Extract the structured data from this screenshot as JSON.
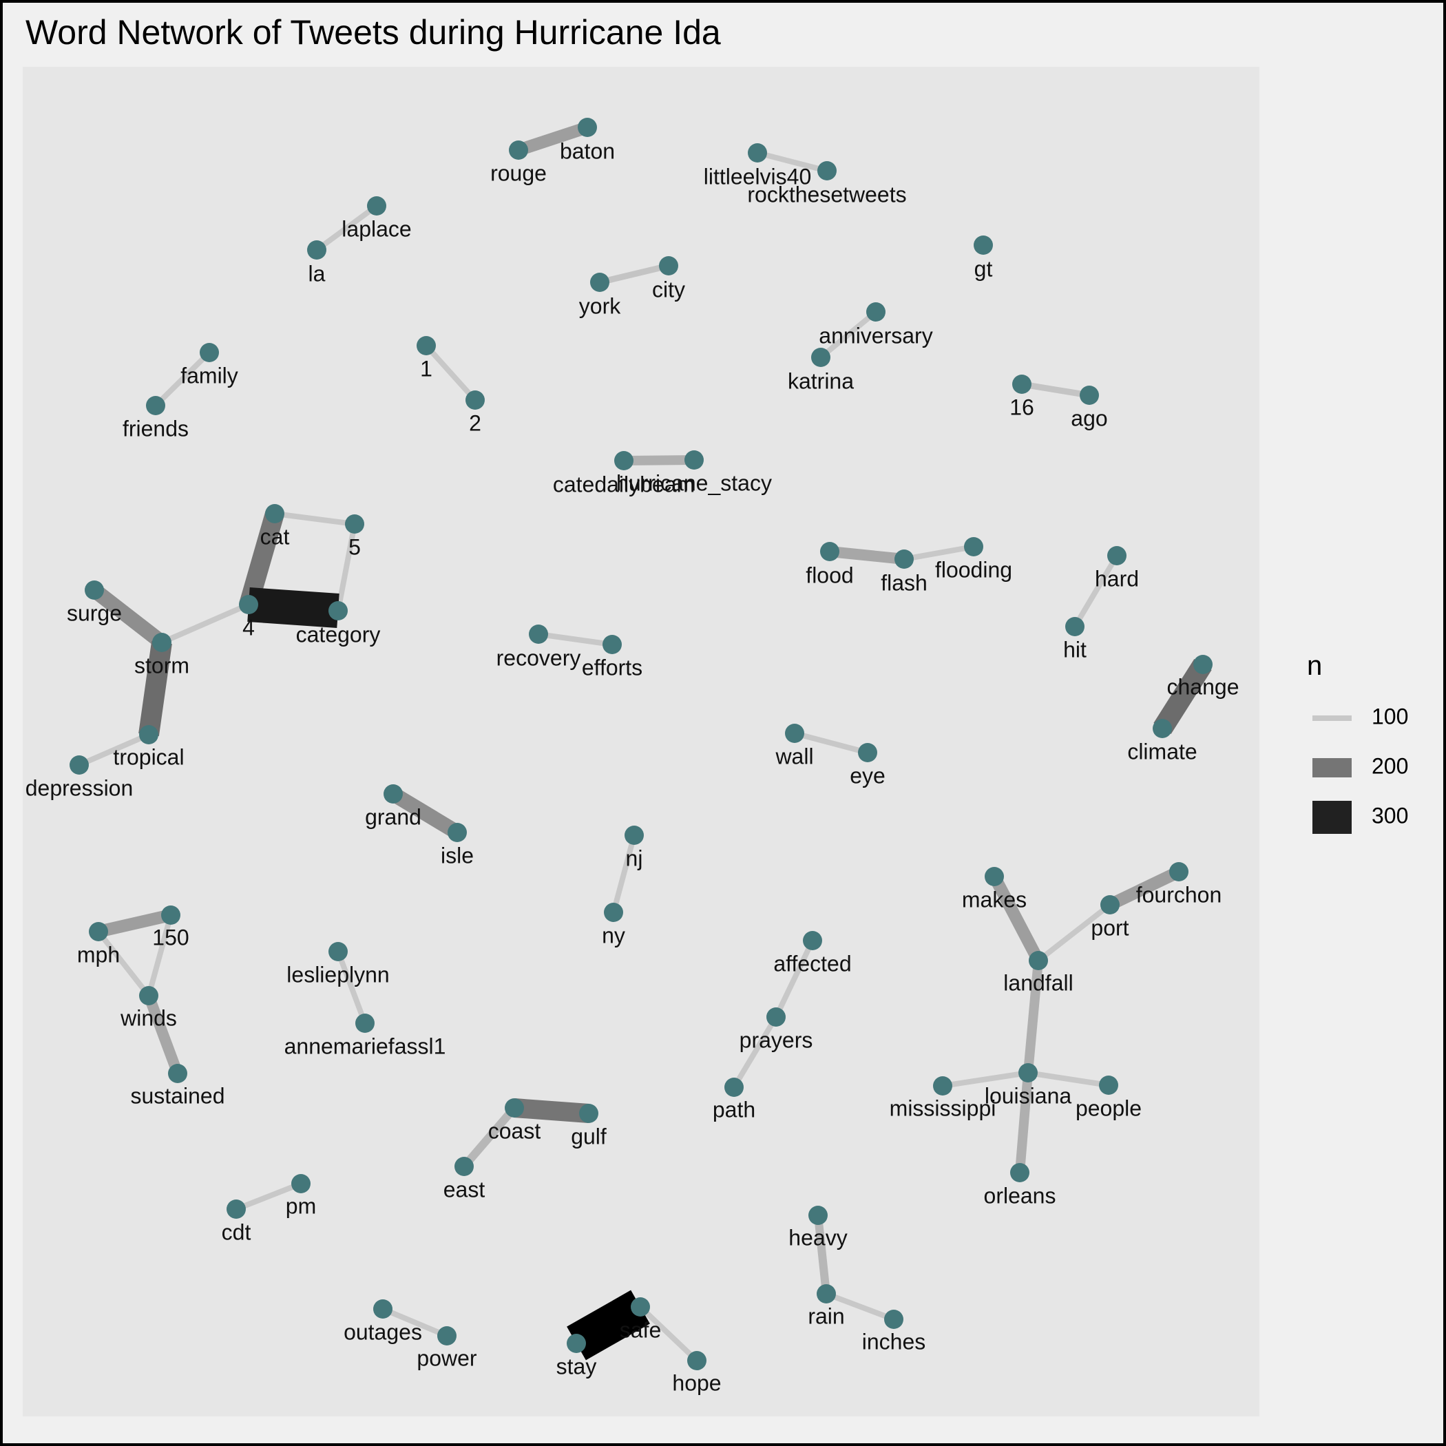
{
  "title": "Word Network of Tweets during Hurricane Ida",
  "colors": {
    "page_bg": "#f0f0f0",
    "panel_bg": "#e6e6e6",
    "node": "#44777a",
    "edge_low": "#c8c8c8",
    "edge_high": "#000000"
  },
  "legend": {
    "title": "n",
    "items": [
      {
        "label": "100",
        "n": 100
      },
      {
        "label": "200",
        "n": 200
      },
      {
        "label": "300",
        "n": 300
      }
    ]
  },
  "nodes": [
    {
      "id": "rouge",
      "label": "rouge"
    },
    {
      "id": "baton",
      "label": "baton"
    },
    {
      "id": "littleelvis40",
      "label": "littleelvis40"
    },
    {
      "id": "rockthesetweets",
      "label": "rockthesetweets"
    },
    {
      "id": "laplace",
      "label": "laplace"
    },
    {
      "id": "la",
      "label": "la"
    },
    {
      "id": "york",
      "label": "york"
    },
    {
      "id": "city",
      "label": "city"
    },
    {
      "id": "gt",
      "label": "gt"
    },
    {
      "id": "anniversary",
      "label": "anniversary"
    },
    {
      "id": "katrina",
      "label": "katrina"
    },
    {
      "id": "family",
      "label": "family"
    },
    {
      "id": "friends",
      "label": "friends"
    },
    {
      "id": "n1",
      "label": "1"
    },
    {
      "id": "n2",
      "label": "2"
    },
    {
      "id": "n16",
      "label": "16"
    },
    {
      "id": "ago",
      "label": "ago"
    },
    {
      "id": "catedailybeam",
      "label": "catedailybeam"
    },
    {
      "id": "hurricane_stacy",
      "label": "hurricane_stacy"
    },
    {
      "id": "cat",
      "label": "cat"
    },
    {
      "id": "n5",
      "label": "5"
    },
    {
      "id": "n4",
      "label": "4"
    },
    {
      "id": "category",
      "label": "category"
    },
    {
      "id": "flood",
      "label": "flood"
    },
    {
      "id": "flash",
      "label": "flash"
    },
    {
      "id": "flooding",
      "label": "flooding"
    },
    {
      "id": "hard",
      "label": "hard"
    },
    {
      "id": "hit",
      "label": "hit"
    },
    {
      "id": "surge",
      "label": "surge"
    },
    {
      "id": "storm",
      "label": "storm"
    },
    {
      "id": "tropical",
      "label": "tropical"
    },
    {
      "id": "depression",
      "label": "depression"
    },
    {
      "id": "recovery",
      "label": "recovery"
    },
    {
      "id": "efforts",
      "label": "efforts"
    },
    {
      "id": "change",
      "label": "change"
    },
    {
      "id": "climate",
      "label": "climate"
    },
    {
      "id": "wall",
      "label": "wall"
    },
    {
      "id": "eye",
      "label": "eye"
    },
    {
      "id": "grand",
      "label": "grand"
    },
    {
      "id": "isle",
      "label": "isle"
    },
    {
      "id": "nj",
      "label": "nj"
    },
    {
      "id": "ny",
      "label": "ny"
    },
    {
      "id": "makes",
      "label": "makes"
    },
    {
      "id": "fourchon",
      "label": "fourchon"
    },
    {
      "id": "port",
      "label": "port"
    },
    {
      "id": "landfall",
      "label": "landfall"
    },
    {
      "id": "mph",
      "label": "mph"
    },
    {
      "id": "n150",
      "label": "150"
    },
    {
      "id": "winds",
      "label": "winds"
    },
    {
      "id": "sustained",
      "label": "sustained"
    },
    {
      "id": "leslieplynn",
      "label": "leslieplynn"
    },
    {
      "id": "annemariefassl1",
      "label": "annemariefassl1"
    },
    {
      "id": "affected",
      "label": "affected"
    },
    {
      "id": "prayers",
      "label": "prayers"
    },
    {
      "id": "path",
      "label": "path"
    },
    {
      "id": "mississippi",
      "label": "mississippi"
    },
    {
      "id": "louisiana",
      "label": "louisiana"
    },
    {
      "id": "people",
      "label": "people"
    },
    {
      "id": "orleans",
      "label": "orleans"
    },
    {
      "id": "coast",
      "label": "coast"
    },
    {
      "id": "gulf",
      "label": "gulf"
    },
    {
      "id": "east",
      "label": "east"
    },
    {
      "id": "pm",
      "label": "pm"
    },
    {
      "id": "cdt",
      "label": "cdt"
    },
    {
      "id": "heavy",
      "label": "heavy"
    },
    {
      "id": "rain",
      "label": "rain"
    },
    {
      "id": "inches",
      "label": "inches"
    },
    {
      "id": "outages",
      "label": "outages"
    },
    {
      "id": "power",
      "label": "power"
    },
    {
      "id": "safe",
      "label": "safe"
    },
    {
      "id": "stay",
      "label": "stay"
    },
    {
      "id": "hope",
      "label": "hope"
    }
  ],
  "edges": [
    {
      "source": "rouge",
      "target": "baton",
      "n": 150
    },
    {
      "source": "littleelvis40",
      "target": "rockthesetweets",
      "n": 100
    },
    {
      "source": "la",
      "target": "laplace",
      "n": 100
    },
    {
      "source": "york",
      "target": "city",
      "n": 105
    },
    {
      "source": "katrina",
      "target": "anniversary",
      "n": 100
    },
    {
      "source": "friends",
      "target": "family",
      "n": 100
    },
    {
      "source": "n1",
      "target": "n2",
      "n": 100
    },
    {
      "source": "n16",
      "target": "ago",
      "n": 105
    },
    {
      "source": "catedailybeam",
      "target": "hurricane_stacy",
      "n": 130
    },
    {
      "source": "cat",
      "target": "n5",
      "n": 100
    },
    {
      "source": "cat",
      "target": "n4",
      "n": 200
    },
    {
      "source": "n5",
      "target": "category",
      "n": 100
    },
    {
      "source": "n4",
      "target": "category",
      "n": 310
    },
    {
      "source": "n4",
      "target": "storm",
      "n": 100
    },
    {
      "source": "flood",
      "target": "flash",
      "n": 140
    },
    {
      "source": "flash",
      "target": "flooding",
      "n": 100
    },
    {
      "source": "hard",
      "target": "hit",
      "n": 100
    },
    {
      "source": "surge",
      "target": "storm",
      "n": 170
    },
    {
      "source": "storm",
      "target": "tropical",
      "n": 210
    },
    {
      "source": "tropical",
      "target": "depression",
      "n": 100
    },
    {
      "source": "recovery",
      "target": "efforts",
      "n": 100
    },
    {
      "source": "climate",
      "target": "change",
      "n": 210
    },
    {
      "source": "wall",
      "target": "eye",
      "n": 100
    },
    {
      "source": "grand",
      "target": "isle",
      "n": 170
    },
    {
      "source": "nj",
      "target": "ny",
      "n": 100
    },
    {
      "source": "makes",
      "target": "landfall",
      "n": 150
    },
    {
      "source": "port",
      "target": "fourchon",
      "n": 150
    },
    {
      "source": "port",
      "target": "landfall",
      "n": 100
    },
    {
      "source": "landfall",
      "target": "louisiana",
      "n": 130
    },
    {
      "source": "mph",
      "target": "n150",
      "n": 150
    },
    {
      "source": "mph",
      "target": "winds",
      "n": 100
    },
    {
      "source": "n150",
      "target": "winds",
      "n": 100
    },
    {
      "source": "winds",
      "target": "sustained",
      "n": 140
    },
    {
      "source": "leslieplynn",
      "target": "annemariefassl1",
      "n": 100
    },
    {
      "source": "affected",
      "target": "prayers",
      "n": 100
    },
    {
      "source": "prayers",
      "target": "path",
      "n": 100
    },
    {
      "source": "mississippi",
      "target": "louisiana",
      "n": 100
    },
    {
      "source": "louisiana",
      "target": "people",
      "n": 100
    },
    {
      "source": "louisiana",
      "target": "orleans",
      "n": 130
    },
    {
      "source": "coast",
      "target": "gulf",
      "n": 200
    },
    {
      "source": "coast",
      "target": "east",
      "n": 120
    },
    {
      "source": "cdt",
      "target": "pm",
      "n": 100
    },
    {
      "source": "heavy",
      "target": "rain",
      "n": 120
    },
    {
      "source": "rain",
      "target": "inches",
      "n": 100
    },
    {
      "source": "outages",
      "target": "power",
      "n": 100
    },
    {
      "source": "stay",
      "target": "safe",
      "n": 340
    },
    {
      "source": "safe",
      "target": "hope",
      "n": 100
    }
  ]
}
